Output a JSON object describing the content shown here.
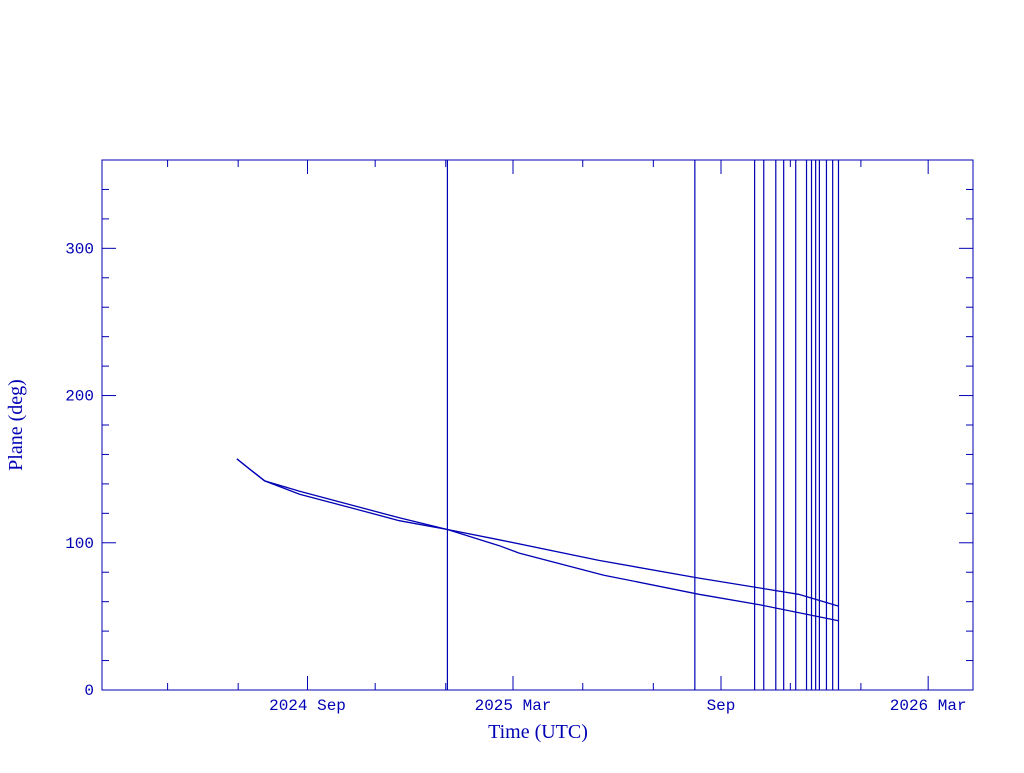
{
  "chart_data": {
    "type": "line",
    "x_label": "Time (UTC)",
    "y_label": "Plane (deg)",
    "xlim": [
      2024.172,
      2026.27
    ],
    "ylim": [
      0,
      360
    ],
    "xticks": [
      {
        "value": 2024.667,
        "label": "2024 Sep"
      },
      {
        "value": 2025.162,
        "label": "2025 Mar"
      },
      {
        "value": 2025.663,
        "label": "Sep"
      },
      {
        "value": 2026.162,
        "label": "2026 Mar"
      }
    ],
    "xminorticks": [
      2024.33,
      2024.5,
      2024.83,
      2025.0,
      2025.33,
      2025.5,
      2025.83,
      2026.0
    ],
    "yticks": [
      0,
      100,
      200,
      300
    ],
    "yminorticks": [
      20,
      40,
      60,
      80,
      120,
      140,
      160,
      180,
      220,
      240,
      260,
      280,
      320,
      340
    ],
    "color": "#0000b4",
    "series": [
      {
        "color": "#0000b4",
        "x": [
          2024.497,
          2024.528,
          2024.564,
          2024.648,
          2024.768,
          2024.888,
          2025.004,
          2025.129,
          2025.369,
          2025.61,
          2025.85,
          2025.946
        ],
        "values": [
          157,
          150,
          142,
          135,
          126,
          117,
          109,
          102,
          88,
          76,
          65,
          57
        ]
      },
      {
        "color": "#0000b4",
        "x": [
          2024.497,
          2024.528,
          2024.564,
          2024.648,
          2024.768,
          2024.888,
          2025.004,
          2025.129,
          2025.177,
          2025.381,
          2025.61,
          2025.754,
          2025.946
        ],
        "values": [
          157,
          150,
          142,
          133,
          124,
          115,
          109,
          98,
          93,
          78,
          65,
          58,
          47
        ]
      }
    ],
    "vlines": [
      2025.004,
      2025.6,
      2025.744,
      2025.766,
      2025.795,
      2025.814,
      2025.843,
      2025.869,
      2025.881,
      2025.891,
      2025.9,
      2025.917,
      2025.932,
      2025.946
    ]
  }
}
